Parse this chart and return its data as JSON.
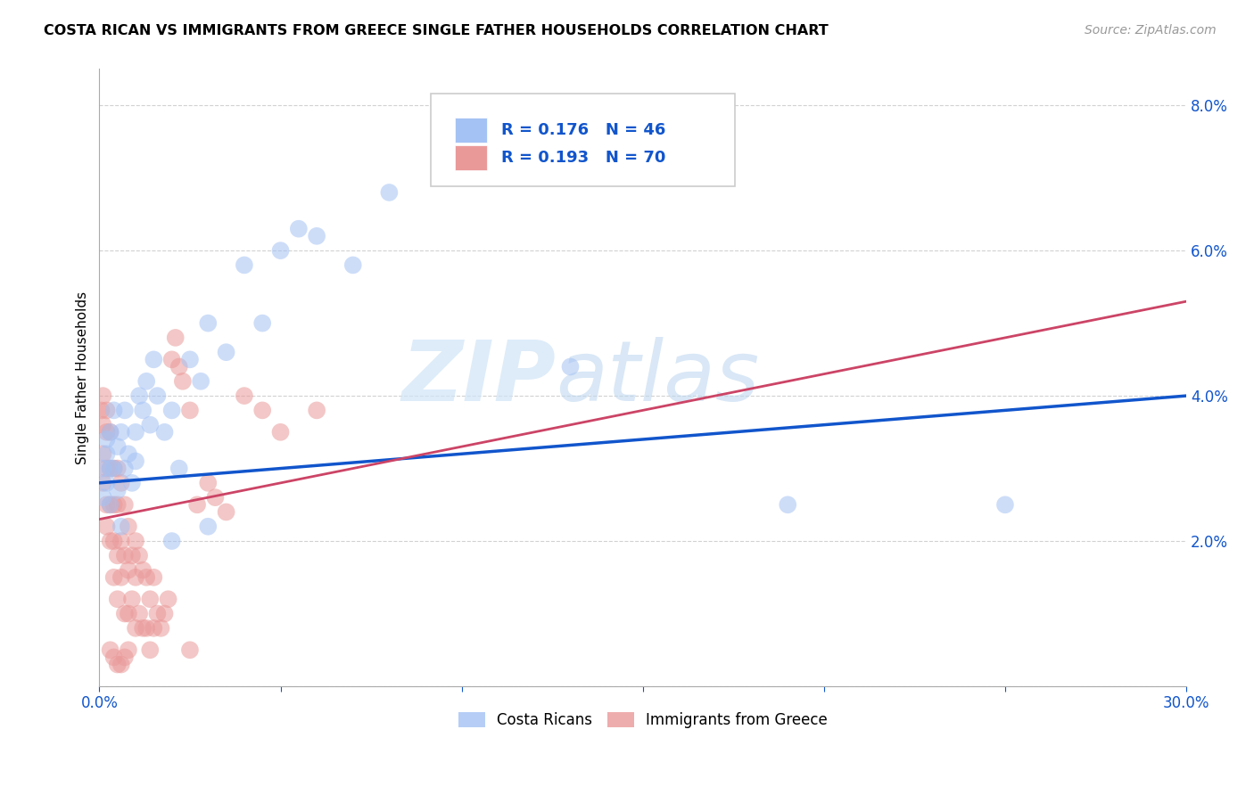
{
  "title": "COSTA RICAN VS IMMIGRANTS FROM GREECE SINGLE FATHER HOUSEHOLDS CORRELATION CHART",
  "source": "Source: ZipAtlas.com",
  "ylabel_label": "Single Father Households",
  "xlim": [
    0.0,
    0.3
  ],
  "ylim": [
    0.0,
    0.085
  ],
  "xticks": [
    0.0,
    0.05,
    0.1,
    0.15,
    0.2,
    0.25,
    0.3
  ],
  "xtick_labels_full": [
    "0.0%",
    "",
    "",
    "",
    "",
    "",
    "30.0%"
  ],
  "yticks": [
    0.0,
    0.02,
    0.04,
    0.06,
    0.08
  ],
  "ytick_labels": [
    "",
    "2.0%",
    "4.0%",
    "6.0%",
    "8.0%"
  ],
  "blue_R": 0.176,
  "blue_N": 46,
  "pink_R": 0.193,
  "pink_N": 70,
  "blue_color": "#a4c2f4",
  "pink_color": "#ea9999",
  "blue_line_color": "#1155cc",
  "pink_line_color": "#cc4466",
  "legend_label_blue": "Costa Ricans",
  "legend_label_pink": "Immigrants from Greece",
  "watermark_zip": "ZIP",
  "watermark_atlas": "atlas",
  "blue_line_x": [
    0.0,
    0.3
  ],
  "blue_line_y": [
    0.028,
    0.04
  ],
  "pink_line_x": [
    0.0,
    0.3
  ],
  "pink_line_y": [
    0.023,
    0.053
  ],
  "blue_x": [
    0.001,
    0.001,
    0.002,
    0.002,
    0.002,
    0.003,
    0.003,
    0.003,
    0.004,
    0.004,
    0.005,
    0.005,
    0.006,
    0.006,
    0.007,
    0.007,
    0.008,
    0.009,
    0.01,
    0.01,
    0.011,
    0.012,
    0.013,
    0.014,
    0.015,
    0.016,
    0.018,
    0.02,
    0.022,
    0.025,
    0.028,
    0.03,
    0.035,
    0.04,
    0.045,
    0.05,
    0.06,
    0.07,
    0.08,
    0.1,
    0.13,
    0.19,
    0.25,
    0.03,
    0.055,
    0.02
  ],
  "blue_y": [
    0.03,
    0.026,
    0.032,
    0.028,
    0.034,
    0.03,
    0.035,
    0.025,
    0.03,
    0.038,
    0.033,
    0.027,
    0.035,
    0.022,
    0.038,
    0.03,
    0.032,
    0.028,
    0.035,
    0.031,
    0.04,
    0.038,
    0.042,
    0.036,
    0.045,
    0.04,
    0.035,
    0.038,
    0.03,
    0.045,
    0.042,
    0.05,
    0.046,
    0.058,
    0.05,
    0.06,
    0.062,
    0.058,
    0.068,
    0.075,
    0.044,
    0.025,
    0.025,
    0.022,
    0.063,
    0.02
  ],
  "pink_x": [
    0.0005,
    0.001,
    0.001,
    0.001,
    0.001,
    0.002,
    0.002,
    0.002,
    0.002,
    0.002,
    0.003,
    0.003,
    0.003,
    0.003,
    0.004,
    0.004,
    0.004,
    0.004,
    0.005,
    0.005,
    0.005,
    0.005,
    0.006,
    0.006,
    0.006,
    0.007,
    0.007,
    0.007,
    0.008,
    0.008,
    0.008,
    0.009,
    0.009,
    0.01,
    0.01,
    0.01,
    0.011,
    0.011,
    0.012,
    0.012,
    0.013,
    0.013,
    0.014,
    0.014,
    0.015,
    0.015,
    0.016,
    0.017,
    0.018,
    0.019,
    0.02,
    0.021,
    0.022,
    0.023,
    0.025,
    0.027,
    0.03,
    0.032,
    0.035,
    0.04,
    0.045,
    0.05,
    0.06,
    0.025,
    0.003,
    0.004,
    0.005,
    0.006,
    0.007,
    0.008
  ],
  "pink_y": [
    0.038,
    0.04,
    0.036,
    0.032,
    0.028,
    0.038,
    0.035,
    0.03,
    0.025,
    0.022,
    0.035,
    0.03,
    0.025,
    0.02,
    0.03,
    0.025,
    0.02,
    0.015,
    0.03,
    0.025,
    0.018,
    0.012,
    0.028,
    0.02,
    0.015,
    0.025,
    0.018,
    0.01,
    0.022,
    0.016,
    0.01,
    0.018,
    0.012,
    0.02,
    0.015,
    0.008,
    0.018,
    0.01,
    0.016,
    0.008,
    0.015,
    0.008,
    0.012,
    0.005,
    0.015,
    0.008,
    0.01,
    0.008,
    0.01,
    0.012,
    0.045,
    0.048,
    0.044,
    0.042,
    0.038,
    0.025,
    0.028,
    0.026,
    0.024,
    0.04,
    0.038,
    0.035,
    0.038,
    0.005,
    0.005,
    0.004,
    0.003,
    0.003,
    0.004,
    0.005
  ]
}
